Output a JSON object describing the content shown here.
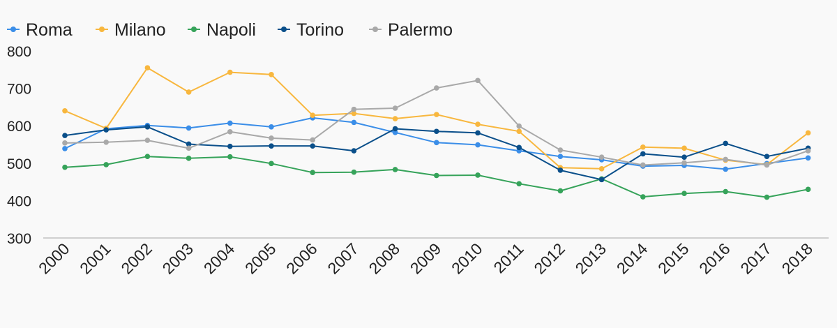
{
  "chart_data": {
    "type": "line",
    "x": [
      "2000",
      "2001",
      "2002",
      "2003",
      "2004",
      "2005",
      "2006",
      "2007",
      "2008",
      "2009",
      "2010",
      "2011",
      "2012",
      "2013",
      "2014",
      "2015",
      "2016",
      "2017",
      "2018"
    ],
    "ylim": [
      300,
      800
    ],
    "yticks": [
      "800",
      "700",
      "600",
      "500",
      "400",
      "300"
    ],
    "grid": false,
    "legend": "top-left",
    "series": [
      {
        "name": "Roma",
        "color": "#3b8ee8",
        "values": [
          539,
          592,
          601,
          594,
          607,
          597,
          621,
          609,
          582,
          555,
          549,
          533,
          518,
          509,
          492,
          494,
          484,
          499,
          514
        ]
      },
      {
        "name": "Milano",
        "color": "#f8b73e",
        "values": [
          640,
          593,
          755,
          690,
          743,
          737,
          628,
          633,
          619,
          630,
          604,
          585,
          488,
          485,
          543,
          540,
          508,
          496,
          581
        ]
      },
      {
        "name": "Napoli",
        "color": "#36a35a",
        "values": [
          489,
          496,
          518,
          513,
          517,
          499,
          475,
          476,
          483,
          467,
          468,
          445,
          426,
          458,
          410,
          419,
          424,
          409,
          430
        ]
      },
      {
        "name": "Torino",
        "color": "#0a4f8a",
        "values": [
          574,
          589,
          597,
          551,
          545,
          546,
          546,
          533,
          592,
          585,
          581,
          542,
          481,
          456,
          525,
          516,
          553,
          518,
          540
        ]
      },
      {
        "name": "Palermo",
        "color": "#a9a9a9",
        "values": [
          554,
          556,
          561,
          540,
          584,
          567,
          562,
          644,
          647,
          701,
          721,
          599,
          535,
          516,
          495,
          501,
          510,
          495,
          533
        ]
      }
    ]
  }
}
